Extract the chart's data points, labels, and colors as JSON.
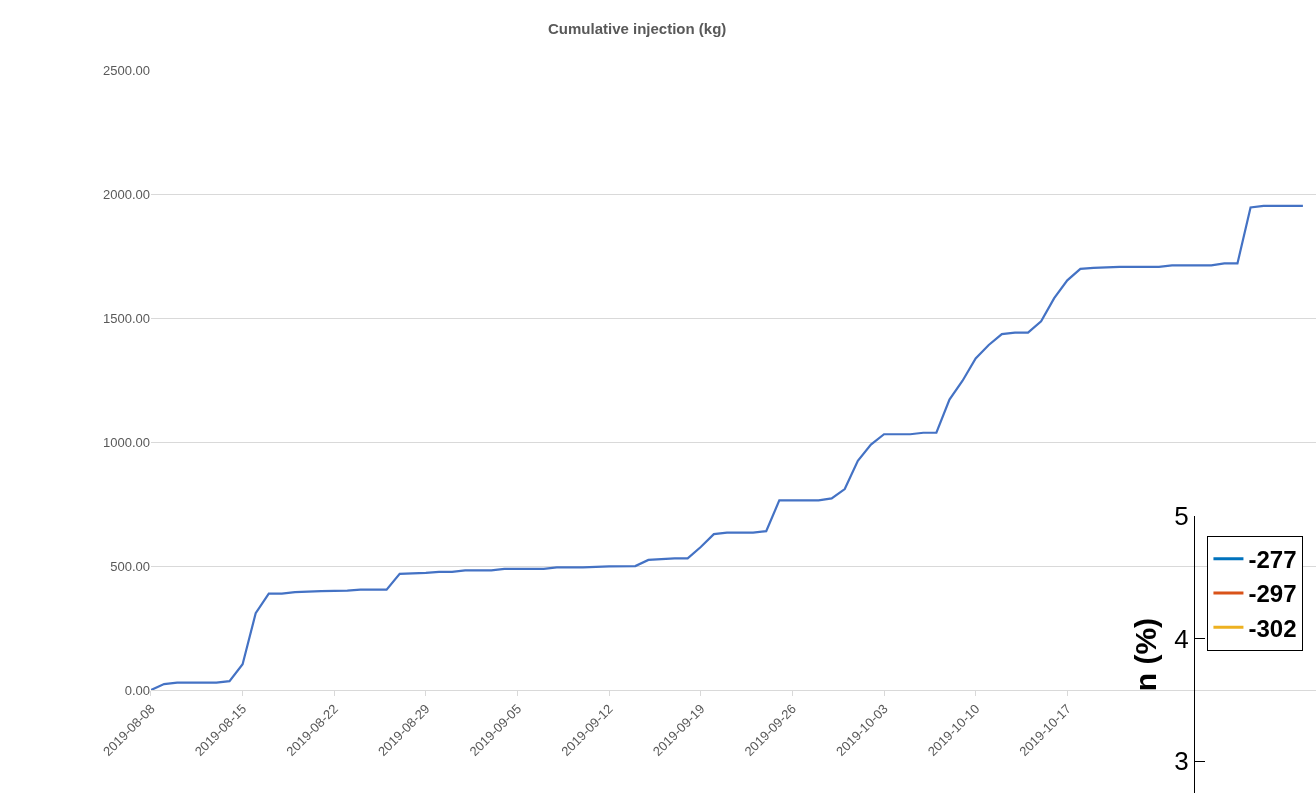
{
  "chart_data": [
    {
      "type": "line",
      "title": "Cumulative injection (kg)",
      "x": [
        "2019-08-08",
        "2019-08-09",
        "2019-08-10",
        "2019-08-13",
        "2019-08-14",
        "2019-08-15",
        "2019-08-16",
        "2019-08-17",
        "2019-08-18",
        "2019-08-19",
        "2019-08-21",
        "2019-08-23",
        "2019-08-24",
        "2019-08-26",
        "2019-08-27",
        "2019-08-29",
        "2019-08-30",
        "2019-08-31",
        "2019-09-01",
        "2019-09-03",
        "2019-09-04",
        "2019-09-07",
        "2019-09-08",
        "2019-09-10",
        "2019-09-12",
        "2019-09-14",
        "2019-09-15",
        "2019-09-17",
        "2019-09-18",
        "2019-09-19",
        "2019-09-20",
        "2019-09-21",
        "2019-09-23",
        "2019-09-24",
        "2019-09-25",
        "2019-09-28",
        "2019-09-29",
        "2019-09-30",
        "2019-10-01",
        "2019-10-02",
        "2019-10-03",
        "2019-10-05",
        "2019-10-06",
        "2019-10-07",
        "2019-10-08",
        "2019-10-09",
        "2019-10-10",
        "2019-10-11",
        "2019-10-12",
        "2019-10-13",
        "2019-10-14",
        "2019-10-15",
        "2019-10-16",
        "2019-10-17",
        "2019-10-18",
        "2019-10-19",
        "2019-10-21",
        "2019-10-24",
        "2019-10-25",
        "2019-10-28",
        "2019-10-29",
        "2019-10-30",
        "2019-10-31",
        "2019-11-01",
        "2019-11-04"
      ],
      "series": [
        {
          "color": "#4472c4",
          "values": [
            0,
            24,
            30,
            30,
            36,
            104,
            310,
            389,
            389,
            395,
            399,
            401,
            405,
            405,
            469,
            473,
            477,
            477,
            483,
            483,
            489,
            489,
            495,
            495,
            499,
            500,
            525,
            531,
            531,
            577,
            629,
            635,
            635,
            641,
            765,
            765,
            773,
            811,
            925,
            990,
            1032,
            1032,
            1038,
            1038,
            1172,
            1248,
            1338,
            1392,
            1436,
            1442,
            1442,
            1488,
            1581,
            1653,
            1699,
            1703,
            1707,
            1707,
            1713,
            1713,
            1721,
            1721,
            1947,
            1953,
            1953
          ]
        }
      ],
      "xlim": [
        "2019-08-08",
        "2019-11-05"
      ],
      "xticks": [
        {
          "value": "2019-08-08",
          "label": "2019-08-08"
        },
        {
          "value": "2019-08-15",
          "label": "2019-08-15"
        },
        {
          "value": "2019-08-22",
          "label": "2019-08-22"
        },
        {
          "value": "2019-08-29",
          "label": "2019-08-29"
        },
        {
          "value": "2019-09-05",
          "label": "2019-09-05"
        },
        {
          "value": "2019-09-12",
          "label": "2019-09-12"
        },
        {
          "value": "2019-09-19",
          "label": "2019-09-19"
        },
        {
          "value": "2019-09-26",
          "label": "2019-09-26"
        },
        {
          "value": "2019-10-03",
          "label": "2019-10-03"
        },
        {
          "value": "2019-10-10",
          "label": "2019-10-10"
        },
        {
          "value": "2019-10-17",
          "label": "2019-10-17"
        }
      ],
      "ylim": [
        0,
        2500
      ],
      "yticks": [
        {
          "value": 0,
          "label": "0.00"
        },
        {
          "value": 500,
          "label": "500.00"
        },
        {
          "value": 1000,
          "label": "1000.00"
        },
        {
          "value": 1500,
          "label": "1500.00"
        },
        {
          "value": 2000,
          "label": "2000.00"
        },
        {
          "value": 2500,
          "label": "2500.00"
        }
      ],
      "grid": "y",
      "legend": false,
      "marker": "none",
      "line_style": "solid"
    },
    {
      "type": "line",
      "ylabel": "n (%)",
      "categories": [
        null
      ],
      "series": [
        {
          "name": "-277",
          "color": "#0072bd",
          "values": [
            null
          ]
        },
        {
          "name": "-297",
          "color": "#d95319",
          "values": [
            null
          ]
        },
        {
          "name": "-302",
          "color": "#edb120",
          "values": [
            null
          ]
        }
      ],
      "ylim": [
        2.74,
        5
      ],
      "yticks": [
        3,
        4,
        5
      ],
      "tick_labels": "y",
      "grid": false,
      "legend": "top",
      "marker": "none",
      "line_style": "solid"
    }
  ]
}
